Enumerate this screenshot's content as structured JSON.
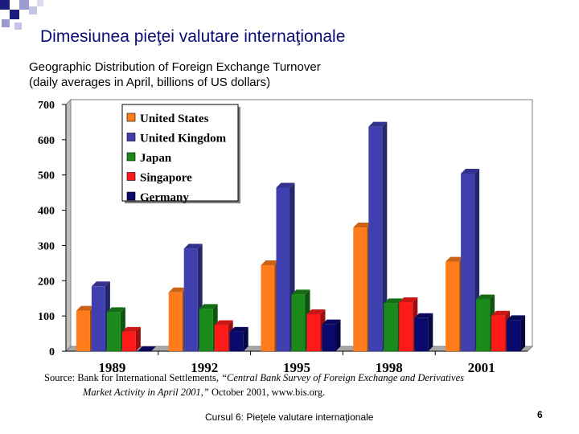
{
  "slide": {
    "title": "Dimesiunea pieţei valutare internaţionale",
    "subtitle_line1": "Geographic Distribution of Foreign Exchange Turnover",
    "subtitle_line2": "(daily averages in April, billions of US dollars)",
    "source_line1_prefix": "Source: Bank for International Settlements, ",
    "source_line1_italic": "“Central Bank Survey of Foreign Exchange and Derivatives",
    "source_line2_italic": "Market Activity in April 2001,”",
    "source_line2_suffix": " October 2001, www.bis.org.",
    "footer": "Cursul 6: Pieţele valutare internaţionale",
    "page_number": "6"
  },
  "colors": {
    "title": "#0a0a78",
    "deco_blue": "#1c1c7c",
    "deco_light": "#9a9ad0"
  },
  "chart_data": {
    "type": "bar",
    "title": "",
    "xlabel": "",
    "ylabel": "",
    "ylim": [
      0,
      700
    ],
    "yticks": [
      0,
      100,
      200,
      300,
      400,
      500,
      600,
      700
    ],
    "categories": [
      "1989",
      "1992",
      "1995",
      "1998",
      "2001"
    ],
    "legend_position": "top-left",
    "grid": false,
    "series": [
      {
        "name": "United States",
        "color": "#ff7b1c",
        "values": [
          115,
          167,
          244,
          351,
          254
        ]
      },
      {
        "name": "United Kingdom",
        "color": "#3f3fb0",
        "values": [
          184,
          291,
          464,
          637,
          504
        ]
      },
      {
        "name": "Japan",
        "color": "#1a8a1a",
        "values": [
          111,
          120,
          161,
          136,
          147
        ]
      },
      {
        "name": "Singapore",
        "color": "#ff1a1a",
        "values": [
          55,
          74,
          105,
          139,
          101
        ]
      },
      {
        "name": "Germany",
        "color": "#0a0a6e",
        "values": [
          0,
          55,
          76,
          94,
          88
        ]
      }
    ]
  }
}
